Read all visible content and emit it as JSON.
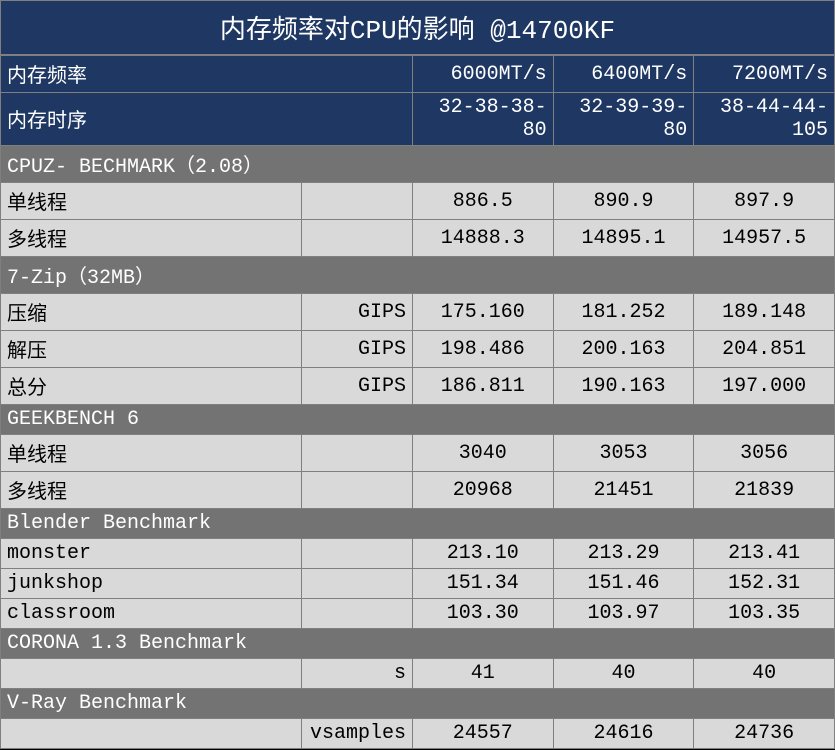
{
  "title": "内存频率对CPU的影响 @14700KF",
  "header": {
    "freq_label": "内存频率",
    "timing_label": "内存时序",
    "cols": [
      {
        "freq": "6000MT/s",
        "timing": "32-38-38-80"
      },
      {
        "freq": "6400MT/s",
        "timing": "32-39-39-80"
      },
      {
        "freq": "7200MT/s",
        "timing": "38-44-44-105"
      }
    ]
  },
  "sections": [
    {
      "name": "CPUZ- BECHMARK（2.08）",
      "rows": [
        {
          "name": "单线程",
          "unit": "",
          "vals": [
            "886.5",
            "890.9",
            "897.9"
          ]
        },
        {
          "name": "多线程",
          "unit": "",
          "vals": [
            "14888.3",
            "14895.1",
            "14957.5"
          ]
        }
      ]
    },
    {
      "name": "7-Zip（32MB）",
      "rows": [
        {
          "name": "压缩",
          "unit": "GIPS",
          "vals": [
            "175.160",
            "181.252",
            "189.148"
          ]
        },
        {
          "name": "解压",
          "unit": "GIPS",
          "vals": [
            "198.486",
            "200.163",
            "204.851"
          ]
        },
        {
          "name": "总分",
          "unit": "GIPS",
          "vals": [
            "186.811",
            "190.163",
            "197.000"
          ]
        }
      ]
    },
    {
      "name": "GEEKBENCH 6",
      "rows": [
        {
          "name": "单线程",
          "unit": "",
          "vals": [
            "3040",
            "3053",
            "3056"
          ]
        },
        {
          "name": "多线程",
          "unit": "",
          "vals": [
            "20968",
            "21451",
            "21839"
          ]
        }
      ]
    },
    {
      "name": "Blender Benchmark",
      "rows": [
        {
          "name": "monster",
          "unit": "",
          "vals": [
            "213.10",
            "213.29",
            "213.41"
          ]
        },
        {
          "name": "junkshop",
          "unit": "",
          "vals": [
            "151.34",
            "151.46",
            "152.31"
          ]
        },
        {
          "name": "classroom",
          "unit": "",
          "vals": [
            "103.30",
            "103.97",
            "103.35"
          ]
        }
      ]
    },
    {
      "name": "CORONA 1.3 Benchmark",
      "rows": [
        {
          "name": "",
          "unit": "s",
          "vals": [
            "41",
            "40",
            "40"
          ]
        }
      ]
    },
    {
      "name": "V-Ray Benchmark",
      "rows": [
        {
          "name": "",
          "unit": "vsamples",
          "vals": [
            "24557",
            "24616",
            "24736"
          ]
        }
      ]
    }
  ],
  "colors": {
    "title_bg": "#1f3863",
    "section_bg": "#737373",
    "row_bg": "#d9d9d9",
    "border": "#7f7f7f",
    "bg": "#000000"
  }
}
